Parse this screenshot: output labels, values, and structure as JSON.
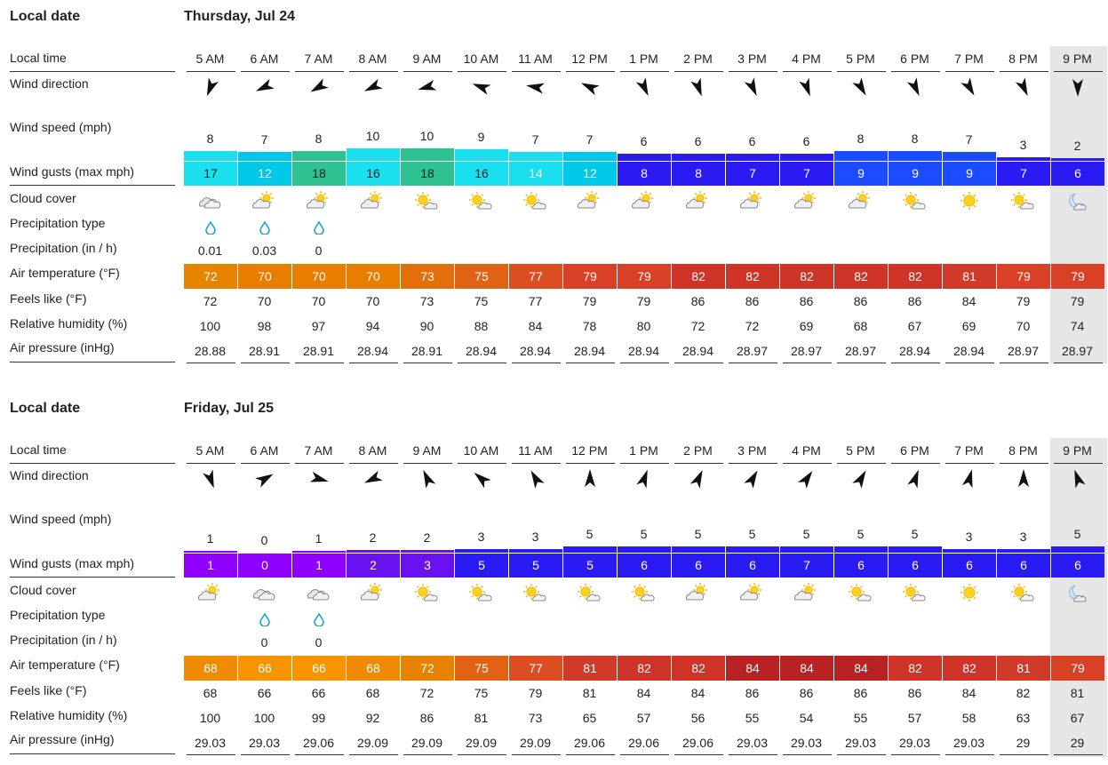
{
  "labels": {
    "local_date": "Local date",
    "local_time": "Local time",
    "wind_direction": "Wind direction",
    "wind_speed": "Wind speed (mph)",
    "wind_gusts": "Wind gusts (max mph)",
    "cloud_cover": "Cloud cover",
    "precip_type": "Precipitation type",
    "precip": "Precipitation (in / h)",
    "air_temp": "Air temperature (°F)",
    "feels_like": "Feels like (°F)",
    "humidity": "Relative humidity (%)",
    "pressure": "Air pressure (inHg)"
  },
  "colors": {
    "gust_scale": {
      "0-1": "#8f00ff",
      "2-4": "#6a11f0",
      "5-8": "#2a1bf2",
      "7b": "#1c52ff",
      "9": "#1b6cff",
      "12": "#00c8e8",
      "14-17": "#19dfef",
      "18": "#2ec292"
    },
    "temp_scale": {
      "66": "#f79400",
      "68": "#f08a00",
      "70": "#e77e00",
      "73": "#e36f0a",
      "75": "#e06215",
      "77": "#dc4d22",
      "79": "#d84126",
      "81": "#d03a28",
      "82": "#cf3428",
      "84": "#b82222",
      "86": "#a81818"
    }
  },
  "days": [
    {
      "date": "Thursday, Jul 24",
      "hours": [
        {
          "time": "5 AM",
          "dir": 202,
          "speed": "8",
          "gust": "17",
          "cloud": "cloudy",
          "ptype": "rain",
          "precip": "0.01",
          "temp": "72",
          "feels": "72",
          "rh": "100",
          "p": "28.88"
        },
        {
          "time": "6 AM",
          "dir": 245,
          "speed": "7",
          "gust": "12",
          "cloud": "partly-cloudy",
          "ptype": "rain",
          "precip": "0.03",
          "temp": "70",
          "feels": "70",
          "rh": "98",
          "p": "28.91"
        },
        {
          "time": "7 AM",
          "dir": 240,
          "speed": "8",
          "gust": "18",
          "cloud": "partly-cloudy",
          "ptype": "rain",
          "precip": "0",
          "temp": "70",
          "feels": "70",
          "rh": "97",
          "p": "28.91"
        },
        {
          "time": "8 AM",
          "dir": 245,
          "speed": "10",
          "gust": "16",
          "cloud": "partly-cloudy",
          "ptype": "",
          "precip": "",
          "temp": "70",
          "feels": "70",
          "rh": "94",
          "p": "28.94"
        },
        {
          "time": "9 AM",
          "dir": 255,
          "speed": "10",
          "gust": "18",
          "cloud": "mostly-sunny",
          "ptype": "",
          "precip": "",
          "temp": "73",
          "feels": "73",
          "rh": "90",
          "p": "28.91"
        },
        {
          "time": "10 AM",
          "dir": 290,
          "speed": "9",
          "gust": "16",
          "cloud": "mostly-sunny",
          "ptype": "",
          "precip": "",
          "temp": "75",
          "feels": "75",
          "rh": "88",
          "p": "28.94"
        },
        {
          "time": "11 AM",
          "dir": 280,
          "speed": "7",
          "gust": "14",
          "cloud": "mostly-sunny",
          "ptype": "",
          "precip": "",
          "temp": "77",
          "feels": "77",
          "rh": "84",
          "p": "28.94"
        },
        {
          "time": "12 PM",
          "dir": 295,
          "speed": "7",
          "gust": "12",
          "cloud": "partly-cloudy",
          "ptype": "",
          "precip": "",
          "temp": "79",
          "feels": "79",
          "rh": "78",
          "p": "28.94"
        },
        {
          "time": "1 PM",
          "dir": 155,
          "speed": "6",
          "gust": "8",
          "cloud": "partly-cloudy",
          "ptype": "",
          "precip": "",
          "temp": "79",
          "feels": "79",
          "rh": "80",
          "p": "28.94"
        },
        {
          "time": "2 PM",
          "dir": 160,
          "speed": "6",
          "gust": "8",
          "cloud": "partly-cloudy",
          "ptype": "",
          "precip": "",
          "temp": "82",
          "feels": "86",
          "rh": "72",
          "p": "28.94"
        },
        {
          "time": "3 PM",
          "dir": 155,
          "speed": "6",
          "gust": "7",
          "cloud": "partly-cloudy",
          "ptype": "",
          "precip": "",
          "temp": "82",
          "feels": "86",
          "rh": "72",
          "p": "28.97"
        },
        {
          "time": "4 PM",
          "dir": 160,
          "speed": "6",
          "gust": "7",
          "cloud": "partly-cloudy",
          "ptype": "",
          "precip": "",
          "temp": "82",
          "feels": "86",
          "rh": "69",
          "p": "28.97"
        },
        {
          "time": "5 PM",
          "dir": 150,
          "speed": "8",
          "gust": "9",
          "cloud": "partly-cloudy",
          "ptype": "",
          "precip": "",
          "temp": "82",
          "feels": "86",
          "rh": "68",
          "p": "28.97"
        },
        {
          "time": "6 PM",
          "dir": 155,
          "speed": "8",
          "gust": "9",
          "cloud": "mostly-sunny",
          "ptype": "",
          "precip": "",
          "temp": "82",
          "feels": "86",
          "rh": "67",
          "p": "28.94"
        },
        {
          "time": "7 PM",
          "dir": 150,
          "speed": "7",
          "gust": "9",
          "cloud": "sunny",
          "ptype": "",
          "precip": "",
          "temp": "81",
          "feels": "84",
          "rh": "69",
          "p": "28.94"
        },
        {
          "time": "8 PM",
          "dir": 155,
          "speed": "3",
          "gust": "7",
          "cloud": "mostly-sunny",
          "ptype": "",
          "precip": "",
          "temp": "79",
          "feels": "79",
          "rh": "70",
          "p": "28.97"
        },
        {
          "time": "9 PM",
          "dir": 180,
          "speed": "2",
          "gust": "6",
          "cloud": "night",
          "ptype": "",
          "precip": "",
          "temp": "79",
          "feels": "79",
          "rh": "74",
          "p": "28.97"
        }
      ]
    },
    {
      "date": "Friday, Jul 25",
      "hours": [
        {
          "time": "5 AM",
          "dir": 160,
          "speed": "1",
          "gust": "1",
          "cloud": "partly-cloudy",
          "ptype": "",
          "precip": "",
          "temp": "68",
          "feels": "68",
          "rh": "100",
          "p": "29.03"
        },
        {
          "time": "6 AM",
          "dir": 60,
          "speed": "0",
          "gust": "0",
          "cloud": "cloudy",
          "ptype": "rain",
          "precip": "0",
          "temp": "66",
          "feels": "66",
          "rh": "100",
          "p": "29.03"
        },
        {
          "time": "7 AM",
          "dir": 105,
          "speed": "1",
          "gust": "1",
          "cloud": "cloudy",
          "ptype": "rain",
          "precip": "0",
          "temp": "66",
          "feels": "66",
          "rh": "99",
          "p": "29.06"
        },
        {
          "time": "8 AM",
          "dir": 245,
          "speed": "2",
          "gust": "2",
          "cloud": "partly-cloudy",
          "ptype": "",
          "precip": "",
          "temp": "68",
          "feels": "68",
          "rh": "92",
          "p": "29.09"
        },
        {
          "time": "9 AM",
          "dir": 335,
          "speed": "2",
          "gust": "3",
          "cloud": "mostly-sunny",
          "ptype": "",
          "precip": "",
          "temp": "72",
          "feels": "72",
          "rh": "86",
          "p": "29.09"
        },
        {
          "time": "10 AM",
          "dir": 310,
          "speed": "3",
          "gust": "5",
          "cloud": "mostly-sunny",
          "ptype": "",
          "precip": "",
          "temp": "75",
          "feels": "75",
          "rh": "81",
          "p": "29.09"
        },
        {
          "time": "11 AM",
          "dir": 330,
          "speed": "3",
          "gust": "5",
          "cloud": "mostly-sunny",
          "ptype": "",
          "precip": "",
          "temp": "77",
          "feels": "79",
          "rh": "73",
          "p": "29.09"
        },
        {
          "time": "12 PM",
          "dir": 0,
          "speed": "5",
          "gust": "5",
          "cloud": "mostly-sunny",
          "ptype": "",
          "precip": "",
          "temp": "81",
          "feels": "81",
          "rh": "65",
          "p": "29.06"
        },
        {
          "time": "1 PM",
          "dir": 20,
          "speed": "5",
          "gust": "6",
          "cloud": "mostly-sunny",
          "ptype": "",
          "precip": "",
          "temp": "82",
          "feels": "84",
          "rh": "57",
          "p": "29.06"
        },
        {
          "time": "2 PM",
          "dir": 25,
          "speed": "5",
          "gust": "6",
          "cloud": "partly-cloudy",
          "ptype": "",
          "precip": "",
          "temp": "82",
          "feels": "84",
          "rh": "56",
          "p": "29.06"
        },
        {
          "time": "3 PM",
          "dir": 30,
          "speed": "5",
          "gust": "6",
          "cloud": "partly-cloudy",
          "ptype": "",
          "precip": "",
          "temp": "84",
          "feels": "86",
          "rh": "55",
          "p": "29.03"
        },
        {
          "time": "4 PM",
          "dir": 35,
          "speed": "5",
          "gust": "7",
          "cloud": "partly-cloudy",
          "ptype": "",
          "precip": "",
          "temp": "84",
          "feels": "86",
          "rh": "54",
          "p": "29.03"
        },
        {
          "time": "5 PM",
          "dir": 30,
          "speed": "5",
          "gust": "6",
          "cloud": "mostly-sunny",
          "ptype": "",
          "precip": "",
          "temp": "84",
          "feels": "86",
          "rh": "55",
          "p": "29.03"
        },
        {
          "time": "6 PM",
          "dir": 20,
          "speed": "5",
          "gust": "6",
          "cloud": "mostly-sunny",
          "ptype": "",
          "precip": "",
          "temp": "82",
          "feels": "86",
          "rh": "57",
          "p": "29.03"
        },
        {
          "time": "7 PM",
          "dir": 15,
          "speed": "3",
          "gust": "6",
          "cloud": "sunny",
          "ptype": "",
          "precip": "",
          "temp": "82",
          "feels": "84",
          "rh": "58",
          "p": "29.03"
        },
        {
          "time": "8 PM",
          "dir": 0,
          "speed": "3",
          "gust": "6",
          "cloud": "mostly-sunny",
          "ptype": "",
          "precip": "",
          "temp": "81",
          "feels": "82",
          "rh": "63",
          "p": "29"
        },
        {
          "time": "9 PM",
          "dir": 340,
          "speed": "5",
          "gust": "6",
          "cloud": "night",
          "ptype": "",
          "precip": "",
          "temp": "79",
          "feels": "81",
          "rh": "67",
          "p": "29"
        }
      ]
    }
  ]
}
